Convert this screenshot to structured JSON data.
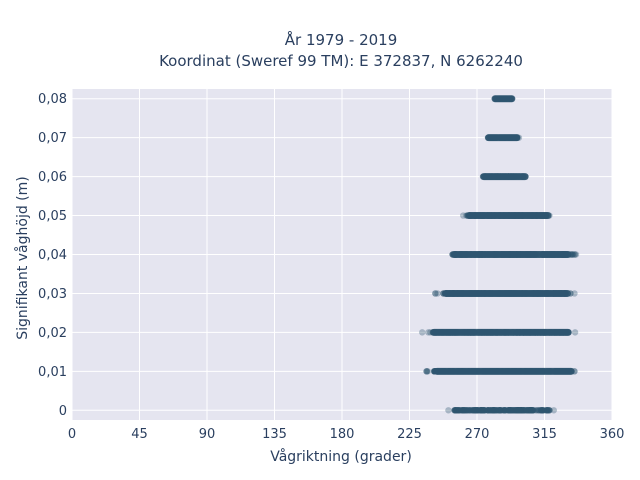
{
  "chart_data": {
    "type": "scatter",
    "title_lines": [
      "År 1979 - 2019",
      "Koordinat (Sweref 99 TM): E 372837, N 6262240"
    ],
    "xlabel": "Vågriktning (grader)",
    "ylabel": "Signifikant våghöjd (m)",
    "xlim": [
      0,
      360
    ],
    "ylim": [
      -0.0025,
      0.0825
    ],
    "x_ticks": [
      0,
      45,
      90,
      135,
      180,
      225,
      270,
      315,
      360
    ],
    "x_tick_labels": [
      "0",
      "45",
      "90",
      "135",
      "180",
      "225",
      "270",
      "315",
      "360"
    ],
    "y_ticks": [
      0,
      0.01,
      0.02,
      0.03,
      0.04,
      0.05,
      0.06,
      0.07,
      0.08
    ],
    "y_tick_labels": [
      "0",
      "0,01",
      "0,02",
      "0,03",
      "0,04",
      "0,05",
      "0,06",
      "0,07",
      "0,08"
    ],
    "grid": true,
    "marker_color": "#2f5570",
    "background_color": "#e5e5f0",
    "bands": [
      {
        "y": 0.0,
        "x_min": 250,
        "x_max": 323
      },
      {
        "y": 0.01,
        "x_min": 235,
        "x_max": 339
      },
      {
        "y": 0.02,
        "x_min": 233,
        "x_max": 337
      },
      {
        "y": 0.03,
        "x_min": 242,
        "x_max": 336
      },
      {
        "y": 0.04,
        "x_min": 248,
        "x_max": 336
      },
      {
        "y": 0.05,
        "x_min": 260,
        "x_max": 321
      },
      {
        "y": 0.06,
        "x_min": 272,
        "x_max": 304
      },
      {
        "y": 0.07,
        "x_min": 276,
        "x_max": 298
      },
      {
        "y": 0.08,
        "x_min": 281,
        "x_max": 294
      }
    ]
  }
}
